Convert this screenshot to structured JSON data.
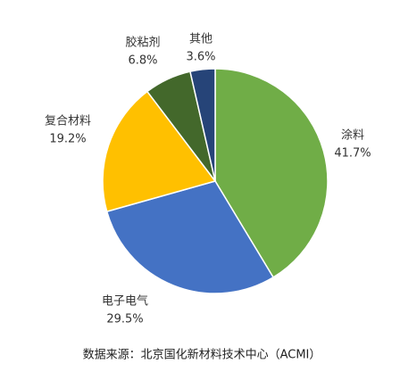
{
  "chart_data": {
    "type": "pie",
    "categories": [
      "涂料",
      "电子电气",
      "复合材料",
      "胶粘剂",
      "其他"
    ],
    "values": [
      41.7,
      29.5,
      19.2,
      6.8,
      3.6
    ],
    "value_labels": [
      "41.7%",
      "29.5%",
      "19.2%",
      "6.8%",
      "3.6%"
    ],
    "colors": [
      "#70ad47",
      "#4472c4",
      "#ffc000",
      "#43682b",
      "#264478"
    ],
    "note": "数据来源：北京国化新材料技术中心（ACMI）"
  }
}
